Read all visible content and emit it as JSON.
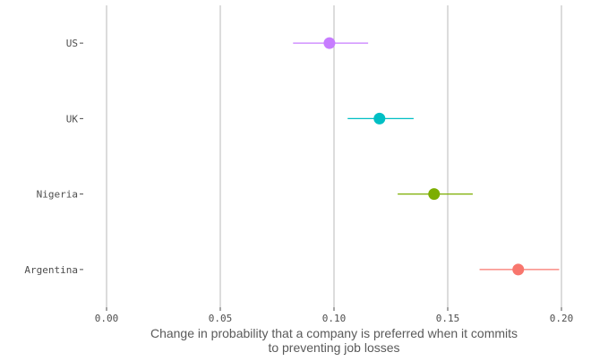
{
  "chart_data": {
    "type": "scatter",
    "subtype": "dot-and-whisker",
    "orientation": "horizontal",
    "title": "",
    "xlabel_lines": [
      "Change in probability that a company is preferred when it commits",
      "to preventing job losses"
    ],
    "ylabel": "",
    "xlim": [
      0,
      0.2
    ],
    "x_ticks": [
      0,
      0.05,
      0.1,
      0.15,
      0.2
    ],
    "x_tick_labels": [
      "0.00",
      "0.05",
      "0.10",
      "0.15",
      "0.20"
    ],
    "grid": "vertical major gridlines",
    "legend": "none",
    "categories": [
      "US",
      "UK",
      "Nigeria",
      "Argentina"
    ],
    "series": [
      {
        "category": "US",
        "estimate": 0.098,
        "lower": 0.082,
        "upper": 0.115,
        "color": "#C77CFF"
      },
      {
        "category": "UK",
        "estimate": 0.12,
        "lower": 0.106,
        "upper": 0.135,
        "color": "#00BFC4"
      },
      {
        "category": "Nigeria",
        "estimate": 0.144,
        "lower": 0.128,
        "upper": 0.161,
        "color": "#7CAE00"
      },
      {
        "category": "Argentina",
        "estimate": 0.181,
        "lower": 0.164,
        "upper": 0.199,
        "color": "#F8766D"
      }
    ]
  }
}
